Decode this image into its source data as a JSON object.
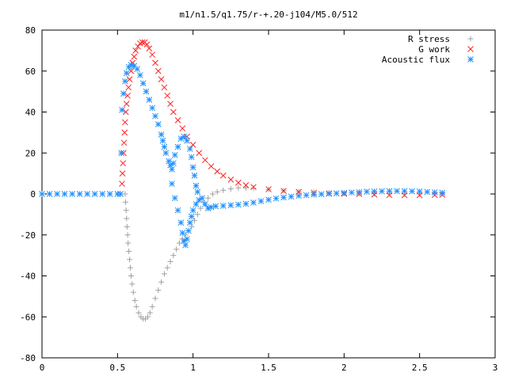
{
  "chart_data": {
    "type": "scatter",
    "title": "m1/n1.5/q1.75/r-+.20-j104/M5.0/512",
    "xlabel": "",
    "ylabel": "",
    "xlim": [
      0,
      3
    ],
    "ylim": [
      -80,
      80
    ],
    "xticks": [
      "0",
      "0.5",
      "1",
      "1.5",
      "2",
      "2.5",
      "3"
    ],
    "yticks": [
      "80",
      "60",
      "40",
      "20",
      "0",
      "-20",
      "-40",
      "-60",
      "-80"
    ],
    "grid": false,
    "legend_position": "top-right",
    "series": [
      {
        "name": "R stress",
        "marker": "+",
        "color": "#a0a0a0",
        "points": [
          [
            0.55,
            0
          ],
          [
            0.553,
            -4
          ],
          [
            0.557,
            -8
          ],
          [
            0.56,
            -12
          ],
          [
            0.563,
            -16
          ],
          [
            0.567,
            -20
          ],
          [
            0.57,
            -24
          ],
          [
            0.575,
            -28
          ],
          [
            0.58,
            -32
          ],
          [
            0.585,
            -36
          ],
          [
            0.59,
            -40
          ],
          [
            0.597,
            -44
          ],
          [
            0.605,
            -48
          ],
          [
            0.615,
            -52
          ],
          [
            0.625,
            -55
          ],
          [
            0.64,
            -58
          ],
          [
            0.655,
            -60
          ],
          [
            0.67,
            -61
          ],
          [
            0.685,
            -61
          ],
          [
            0.7,
            -60
          ],
          [
            0.715,
            -58
          ],
          [
            0.73,
            -55
          ],
          [
            0.75,
            -51
          ],
          [
            0.77,
            -47
          ],
          [
            0.79,
            -43
          ],
          [
            0.81,
            -39
          ],
          [
            0.83,
            -36
          ],
          [
            0.85,
            -33
          ],
          [
            0.87,
            -30
          ],
          [
            0.89,
            -27
          ],
          [
            0.91,
            -24
          ],
          [
            0.93,
            -22
          ],
          [
            0.95,
            -20
          ],
          [
            0.97,
            -18
          ],
          [
            0.99,
            -16
          ],
          [
            1.01,
            -13
          ],
          [
            1.03,
            -10
          ],
          [
            1.05,
            -7
          ],
          [
            1.07,
            -4
          ],
          [
            1.1,
            -2
          ],
          [
            1.13,
            0
          ],
          [
            1.16,
            1
          ],
          [
            1.2,
            1.8
          ],
          [
            1.25,
            2.5
          ],
          [
            1.3,
            3
          ],
          [
            1.35,
            3
          ],
          [
            1.4,
            2.8
          ],
          [
            1.5,
            2.2
          ],
          [
            1.6,
            1.6
          ],
          [
            1.7,
            1.1
          ],
          [
            1.8,
            0.8
          ],
          [
            1.9,
            0.5
          ],
          [
            2.0,
            0.3
          ],
          [
            2.1,
            0.2
          ],
          [
            2.2,
            0.1
          ],
          [
            2.3,
            0
          ],
          [
            2.4,
            0
          ],
          [
            2.5,
            0
          ],
          [
            2.6,
            0
          ],
          [
            2.65,
            0
          ]
        ]
      },
      {
        "name": "G work",
        "marker": "x",
        "color": "#ff2020",
        "points": [
          [
            0.53,
            5
          ],
          [
            0.533,
            10
          ],
          [
            0.536,
            15
          ],
          [
            0.54,
            20
          ],
          [
            0.543,
            25
          ],
          [
            0.547,
            30
          ],
          [
            0.55,
            35
          ],
          [
            0.555,
            40
          ],
          [
            0.56,
            44
          ],
          [
            0.567,
            48
          ],
          [
            0.573,
            52
          ],
          [
            0.58,
            56
          ],
          [
            0.59,
            60
          ],
          [
            0.6,
            64
          ],
          [
            0.61,
            67
          ],
          [
            0.62,
            70
          ],
          [
            0.635,
            72
          ],
          [
            0.65,
            73.5
          ],
          [
            0.665,
            74
          ],
          [
            0.68,
            74
          ],
          [
            0.695,
            73
          ],
          [
            0.71,
            71
          ],
          [
            0.73,
            68
          ],
          [
            0.75,
            64
          ],
          [
            0.77,
            60
          ],
          [
            0.79,
            56
          ],
          [
            0.81,
            52
          ],
          [
            0.83,
            48
          ],
          [
            0.85,
            44
          ],
          [
            0.87,
            40
          ],
          [
            0.9,
            36
          ],
          [
            0.93,
            32
          ],
          [
            0.96,
            28
          ],
          [
            1.0,
            24
          ],
          [
            1.04,
            20
          ],
          [
            1.08,
            16.5
          ],
          [
            1.12,
            13.5
          ],
          [
            1.16,
            11
          ],
          [
            1.2,
            9
          ],
          [
            1.25,
            7
          ],
          [
            1.3,
            5.5
          ],
          [
            1.35,
            4.3
          ],
          [
            1.4,
            3.4
          ],
          [
            1.5,
            2.3
          ],
          [
            1.6,
            1.5
          ],
          [
            1.7,
            1
          ],
          [
            1.8,
            0.6
          ],
          [
            1.9,
            0.3
          ],
          [
            2.0,
            0.1
          ],
          [
            2.1,
            0
          ],
          [
            2.2,
            -0.3
          ],
          [
            2.3,
            -0.5
          ],
          [
            2.4,
            -0.6
          ],
          [
            2.5,
            -0.6
          ],
          [
            2.6,
            -0.5
          ],
          [
            2.65,
            -0.4
          ]
        ]
      },
      {
        "name": "Acoustic flux",
        "marker": "*",
        "color": "#2090ff",
        "points": [
          [
            0.0,
            0
          ],
          [
            0.05,
            0
          ],
          [
            0.1,
            0
          ],
          [
            0.15,
            0
          ],
          [
            0.2,
            0
          ],
          [
            0.25,
            0
          ],
          [
            0.3,
            0
          ],
          [
            0.35,
            0
          ],
          [
            0.4,
            0
          ],
          [
            0.45,
            0
          ],
          [
            0.5,
            0
          ],
          [
            0.52,
            0
          ],
          [
            0.525,
            20
          ],
          [
            0.53,
            41
          ],
          [
            0.54,
            49
          ],
          [
            0.55,
            55
          ],
          [
            0.56,
            59
          ],
          [
            0.575,
            62
          ],
          [
            0.59,
            63
          ],
          [
            0.61,
            62.5
          ],
          [
            0.63,
            61
          ],
          [
            0.65,
            58
          ],
          [
            0.67,
            54
          ],
          [
            0.69,
            50
          ],
          [
            0.71,
            46
          ],
          [
            0.73,
            42
          ],
          [
            0.75,
            38
          ],
          [
            0.77,
            34
          ],
          [
            0.79,
            29
          ],
          [
            0.8,
            26
          ],
          [
            0.81,
            23
          ],
          [
            0.82,
            20
          ],
          [
            0.84,
            16
          ],
          [
            0.85,
            14
          ],
          [
            0.86,
            12
          ],
          [
            0.87,
            15
          ],
          [
            0.88,
            19
          ],
          [
            0.9,
            23
          ],
          [
            0.92,
            27
          ],
          [
            0.94,
            28
          ],
          [
            0.96,
            26
          ],
          [
            0.98,
            22
          ],
          [
            0.99,
            18
          ],
          [
            1.0,
            13
          ],
          [
            1.01,
            9
          ],
          [
            1.02,
            4
          ],
          [
            1.03,
            1
          ],
          [
            0.86,
            5
          ],
          [
            0.88,
            -2
          ],
          [
            0.9,
            -8
          ],
          [
            0.92,
            -14
          ],
          [
            0.93,
            -19
          ],
          [
            0.94,
            -23
          ],
          [
            0.95,
            -25
          ],
          [
            0.96,
            -22
          ],
          [
            0.97,
            -18
          ],
          [
            0.98,
            -14
          ],
          [
            0.99,
            -11
          ],
          [
            1.0,
            -8
          ],
          [
            1.02,
            -5
          ],
          [
            1.04,
            -3
          ],
          [
            1.06,
            -2
          ],
          [
            1.08,
            -5
          ],
          [
            1.1,
            -7
          ],
          [
            1.12,
            -6.5
          ],
          [
            1.15,
            -6
          ],
          [
            1.2,
            -5.8
          ],
          [
            1.25,
            -5.5
          ],
          [
            1.3,
            -5.2
          ],
          [
            1.35,
            -4.8
          ],
          [
            1.4,
            -4.2
          ],
          [
            1.45,
            -3.5
          ],
          [
            1.5,
            -2.8
          ],
          [
            1.55,
            -2.2
          ],
          [
            1.6,
            -1.7
          ],
          [
            1.65,
            -1.3
          ],
          [
            1.7,
            -0.9
          ],
          [
            1.75,
            -0.6
          ],
          [
            1.8,
            -0.3
          ],
          [
            1.85,
            -0.1
          ],
          [
            1.9,
            0.1
          ],
          [
            1.95,
            0.3
          ],
          [
            2.0,
            0.5
          ],
          [
            2.05,
            0.7
          ],
          [
            2.1,
            0.9
          ],
          [
            2.15,
            1.1
          ],
          [
            2.2,
            1.2
          ],
          [
            2.25,
            1.3
          ],
          [
            2.3,
            1.4
          ],
          [
            2.35,
            1.4
          ],
          [
            2.4,
            1.4
          ],
          [
            2.45,
            1.3
          ],
          [
            2.5,
            1.2
          ],
          [
            2.55,
            1.0
          ],
          [
            2.6,
            0.8
          ],
          [
            2.65,
            0.6
          ]
        ]
      }
    ]
  }
}
